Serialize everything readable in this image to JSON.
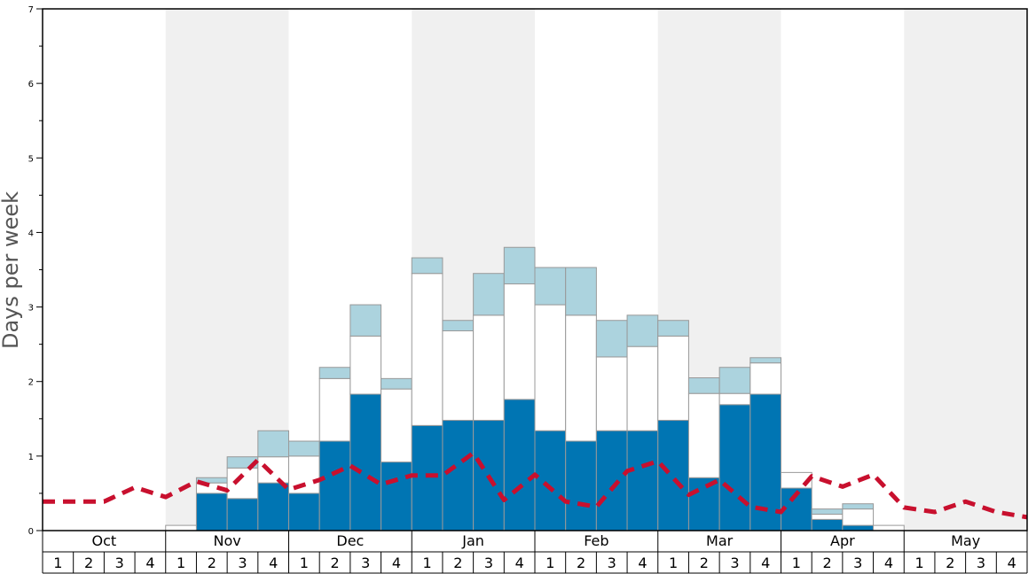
{
  "chart_data": {
    "type": "bar",
    "ylabel": "Days per week",
    "ylim": [
      0,
      7
    ],
    "yticks": [
      "0",
      "1",
      "2",
      "3",
      "4",
      "5",
      "6",
      "7"
    ],
    "months": [
      "Oct",
      "Nov",
      "Dec",
      "Jan",
      "Feb",
      "Mar",
      "Apr",
      "May"
    ],
    "weeks": [
      "1",
      "2",
      "3",
      "4"
    ],
    "shaded_months": [
      "Nov",
      "Jan",
      "Mar",
      "May"
    ],
    "stack_series": [
      {
        "key": "dark",
        "color": "#0075b3"
      },
      {
        "key": "white",
        "color": "#ffffff"
      },
      {
        "key": "light",
        "color": "#acd3de"
      }
    ],
    "bars": [
      {
        "month": "Oct",
        "week": "1",
        "dark": 0,
        "white": 0,
        "light": 0
      },
      {
        "month": "Oct",
        "week": "2",
        "dark": 0,
        "white": 0,
        "light": 0
      },
      {
        "month": "Oct",
        "week": "3",
        "dark": 0,
        "white": 0,
        "light": 0
      },
      {
        "month": "Oct",
        "week": "4",
        "dark": 0,
        "white": 0,
        "light": 0
      },
      {
        "month": "Nov",
        "week": "1",
        "dark": 0,
        "white": 0.07,
        "light": 0
      },
      {
        "month": "Nov",
        "week": "2",
        "dark": 0.5,
        "white": 0.14,
        "light": 0.07
      },
      {
        "month": "Nov",
        "week": "3",
        "dark": 0.43,
        "white": 0.41,
        "light": 0.15
      },
      {
        "month": "Nov",
        "week": "4",
        "dark": 0.64,
        "white": 0.35,
        "light": 0.35
      },
      {
        "month": "Dec",
        "week": "1",
        "dark": 0.5,
        "white": 0.5,
        "light": 0.2
      },
      {
        "month": "Dec",
        "week": "2",
        "dark": 1.2,
        "white": 0.84,
        "light": 0.15
      },
      {
        "month": "Dec",
        "week": "3",
        "dark": 1.83,
        "white": 0.78,
        "light": 0.42
      },
      {
        "month": "Dec",
        "week": "4",
        "dark": 0.92,
        "white": 0.98,
        "light": 0.14
      },
      {
        "month": "Jan",
        "week": "1",
        "dark": 1.41,
        "white": 2.04,
        "light": 0.21
      },
      {
        "month": "Jan",
        "week": "2",
        "dark": 1.48,
        "white": 1.2,
        "light": 0.14
      },
      {
        "month": "Jan",
        "week": "3",
        "dark": 1.48,
        "white": 1.41,
        "light": 0.56
      },
      {
        "month": "Jan",
        "week": "4",
        "dark": 1.76,
        "white": 1.55,
        "light": 0.49
      },
      {
        "month": "Feb",
        "week": "1",
        "dark": 1.34,
        "white": 1.69,
        "light": 0.5
      },
      {
        "month": "Feb",
        "week": "2",
        "dark": 1.2,
        "white": 1.69,
        "light": 0.64
      },
      {
        "month": "Feb",
        "week": "3",
        "dark": 1.34,
        "white": 0.99,
        "light": 0.49
      },
      {
        "month": "Feb",
        "week": "4",
        "dark": 1.34,
        "white": 1.13,
        "light": 0.42
      },
      {
        "month": "Mar",
        "week": "1",
        "dark": 1.48,
        "white": 1.13,
        "light": 0.21
      },
      {
        "month": "Mar",
        "week": "2",
        "dark": 0.71,
        "white": 1.13,
        "light": 0.21
      },
      {
        "month": "Mar",
        "week": "3",
        "dark": 1.69,
        "white": 0.15,
        "light": 0.35
      },
      {
        "month": "Mar",
        "week": "4",
        "dark": 1.83,
        "white": 0.42,
        "light": 0.07
      },
      {
        "month": "Apr",
        "week": "1",
        "dark": 0.57,
        "white": 0.21,
        "light": 0
      },
      {
        "month": "Apr",
        "week": "2",
        "dark": 0.15,
        "white": 0.07,
        "light": 0.07
      },
      {
        "month": "Apr",
        "week": "3",
        "dark": 0.07,
        "white": 0.22,
        "light": 0.07
      },
      {
        "month": "Apr",
        "week": "4",
        "dark": 0,
        "white": 0.07,
        "light": 0
      },
      {
        "month": "May",
        "week": "1",
        "dark": 0,
        "white": 0,
        "light": 0
      },
      {
        "month": "May",
        "week": "2",
        "dark": 0,
        "white": 0,
        "light": 0
      },
      {
        "month": "May",
        "week": "3",
        "dark": 0,
        "white": 0,
        "light": 0
      },
      {
        "month": "May",
        "week": "4",
        "dark": 0,
        "white": 0,
        "light": 0
      }
    ],
    "dashed_line": {
      "color": "#c8102e",
      "values": [
        0.39,
        0.39,
        0.39,
        0.58,
        0.45,
        0.66,
        0.54,
        0.95,
        0.55,
        0.68,
        0.87,
        0.62,
        0.74,
        0.74,
        1.04,
        0.41,
        0.75,
        0.39,
        0.32,
        0.8,
        0.93,
        0.48,
        0.68,
        0.32,
        0.25,
        0.73,
        0.59,
        0.75,
        0.31,
        0.25,
        0.39,
        0.25,
        0.18
      ]
    }
  }
}
